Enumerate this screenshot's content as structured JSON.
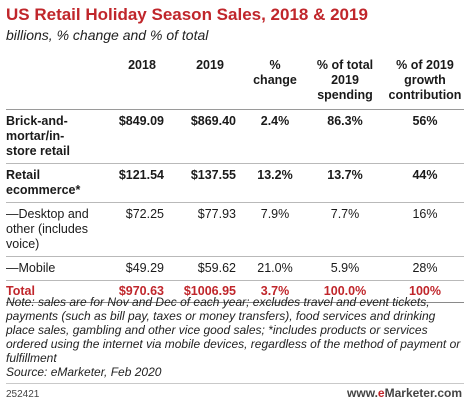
{
  "title": "US Retail Holiday Season Sales, 2018 & 2019",
  "subtitle": "billions, % change and % of total",
  "chart_data": {
    "type": "table",
    "columns": [
      [
        "",
        ""
      ],
      [
        "2018",
        ""
      ],
      [
        "2019",
        ""
      ],
      [
        "%",
        "change"
      ],
      [
        "% of total",
        "2019",
        "spending"
      ],
      [
        "% of 2019",
        "growth",
        "contribution"
      ]
    ],
    "rows": [
      {
        "label_lines": [
          "Brick-and-",
          "mortar/in-",
          "store retail"
        ],
        "values": [
          "$849.09",
          "$869.40",
          "2.4%",
          "86.3%",
          "56%"
        ],
        "style": "bold"
      },
      {
        "label_lines": [
          "Retail",
          "ecommerce*"
        ],
        "values": [
          "$121.54",
          "$137.55",
          "13.2%",
          "13.7%",
          "44%"
        ],
        "style": "bold"
      },
      {
        "label_lines": [
          "—Desktop and",
          "other (includes",
          "voice)"
        ],
        "values": [
          "$72.25",
          "$77.93",
          "7.9%",
          "7.7%",
          "16%"
        ],
        "style": "normal"
      },
      {
        "label_lines": [
          "—Mobile"
        ],
        "values": [
          "$49.29",
          "$59.62",
          "21.0%",
          "5.9%",
          "28%"
        ],
        "style": "normal"
      },
      {
        "label_lines": [
          "Total"
        ],
        "values": [
          "$970.63",
          "$1006.95",
          "3.7%",
          "100.0%",
          "100%"
        ],
        "style": "total"
      }
    ]
  },
  "note": "Note: sales are for Nov and Dec of each year; excludes travel and event tickets, payments (such as bill pay, taxes or money transfers), food services and drinking place sales, gambling and other vice good sales; *includes products or services ordered using the internet via mobile devices, regardless of the method of payment or fulfillment",
  "source": "Source: eMarketer, Feb 2020",
  "chart_id": "252421",
  "brand": {
    "prefix": "www.",
    "e": "e",
    "name": "Marketer",
    "suffix": ".com"
  },
  "colors": {
    "accent": "#c0262b"
  }
}
